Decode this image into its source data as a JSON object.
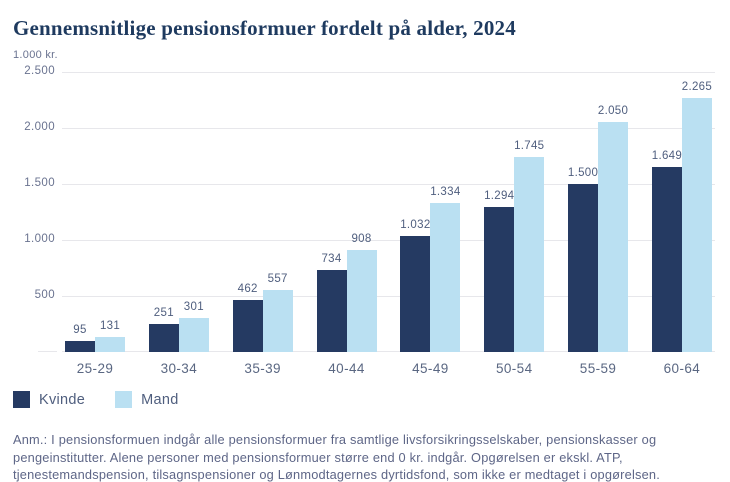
{
  "colors": {
    "page_bg": "#FFFFFF",
    "title_navy": "#1E3A5F",
    "bar_kvinde": "#253A62",
    "bar_mand": "#BAE0F2",
    "tick_text": "#6A7390",
    "value_text": "#4F5E7E",
    "axis_text": "#5A6782",
    "footnote_text": "#5E6687",
    "gridline": "#E7E7EB"
  },
  "chart_data": {
    "type": "bar",
    "title": "Gennemsnitlige pensionsformuer fordelt på alder, 2024",
    "unit_label": "1.000 kr.",
    "categories": [
      "25-29",
      "30-34",
      "35-39",
      "40-44",
      "45-49",
      "50-54",
      "55-59",
      "60-64"
    ],
    "series": [
      {
        "name": "Kvinde",
        "color": "#253A62",
        "values": [
          95,
          251,
          462,
          734,
          1032,
          1294,
          1500,
          1649
        ],
        "labels": [
          "95",
          "251",
          "462",
          "734",
          "1.032",
          "1.294",
          "1.500",
          "1.649"
        ]
      },
      {
        "name": "Mand",
        "color": "#BAE0F2",
        "values": [
          131,
          301,
          557,
          908,
          1334,
          1745,
          2050,
          2265
        ],
        "labels": [
          "131",
          "301",
          "557",
          "908",
          "1.334",
          "1.745",
          "2.050",
          "2.265"
        ]
      }
    ],
    "xlabel": "",
    "ylabel": "1.000 kr.",
    "ylim": [
      0,
      2500
    ],
    "yticks": [
      500,
      1000,
      1500,
      2000,
      2500
    ],
    "ytick_labels": [
      "500",
      "1.000",
      "1.500",
      "2.000",
      "2.500"
    ],
    "grid": true,
    "legend_position": "bottom-left"
  },
  "footnote": {
    "lines": [
      "Anm.: I pensionsformuen indgår alle pensionsformuer fra samtlige livsforsikringsselskaber, pensionskasser og",
      "pengeinstitutter. Alene personer med pensionsformuer større end 0 kr. indgår. Opgørelsen er ekskl. ATP,",
      "tjenestemandspension, tilsagnspensioner og Lønmodtagernes dyrtidsfond, som ikke er medtaget i opgørelsen."
    ]
  }
}
